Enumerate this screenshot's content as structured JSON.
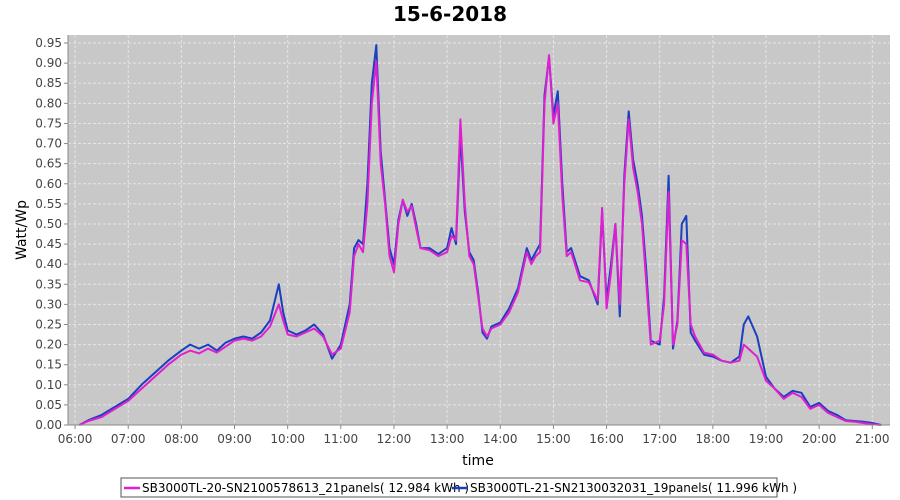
{
  "chart_data": {
    "type": "line",
    "title": "15-6-2018",
    "xlabel": "time",
    "ylabel": "Watt/Wp",
    "xlim": [
      "05:52",
      "21:20"
    ],
    "ylim": [
      0,
      0.97
    ],
    "x_ticks": [
      "06:00",
      "07:00",
      "08:00",
      "09:00",
      "10:00",
      "11:00",
      "12:00",
      "13:00",
      "14:00",
      "15:00",
      "16:00",
      "17:00",
      "18:00",
      "19:00",
      "20:00",
      "21:00"
    ],
    "y_ticks": [
      "0.00",
      "0.05",
      "0.10",
      "0.15",
      "0.20",
      "0.25",
      "0.30",
      "0.35",
      "0.40",
      "0.45",
      "0.50",
      "0.55",
      "0.60",
      "0.65",
      "0.70",
      "0.75",
      "0.80",
      "0.85",
      "0.90",
      "0.95"
    ],
    "grid": true,
    "legend_position": "bottom",
    "colors": {
      "plot_bg": "#c8c8c8",
      "grid": "#e6e6e6"
    },
    "series": [
      {
        "name": "SB3000TL-20-SN2100578613_21panels( 12.984 kWh )",
        "color": "#e020d0",
        "points": [
          [
            "06:05",
            0.0
          ],
          [
            "06:15",
            0.01
          ],
          [
            "06:30",
            0.02
          ],
          [
            "06:45",
            0.04
          ],
          [
            "07:00",
            0.06
          ],
          [
            "07:15",
            0.09
          ],
          [
            "07:30",
            0.12
          ],
          [
            "07:45",
            0.15
          ],
          [
            "08:00",
            0.175
          ],
          [
            "08:10",
            0.185
          ],
          [
            "08:20",
            0.178
          ],
          [
            "08:30",
            0.19
          ],
          [
            "08:40",
            0.18
          ],
          [
            "08:50",
            0.195
          ],
          [
            "09:00",
            0.21
          ],
          [
            "09:10",
            0.215
          ],
          [
            "09:20",
            0.21
          ],
          [
            "09:30",
            0.22
          ],
          [
            "09:40",
            0.245
          ],
          [
            "09:50",
            0.3
          ],
          [
            "09:55",
            0.26
          ],
          [
            "10:00",
            0.225
          ],
          [
            "10:10",
            0.22
          ],
          [
            "10:20",
            0.23
          ],
          [
            "10:30",
            0.24
          ],
          [
            "10:40",
            0.22
          ],
          [
            "10:50",
            0.175
          ],
          [
            "11:00",
            0.19
          ],
          [
            "11:10",
            0.28
          ],
          [
            "11:15",
            0.42
          ],
          [
            "11:20",
            0.45
          ],
          [
            "11:25",
            0.43
          ],
          [
            "11:30",
            0.55
          ],
          [
            "11:35",
            0.8
          ],
          [
            "11:40",
            0.905
          ],
          [
            "11:45",
            0.65
          ],
          [
            "11:50",
            0.55
          ],
          [
            "11:55",
            0.42
          ],
          [
            "12:00",
            0.38
          ],
          [
            "12:05",
            0.5
          ],
          [
            "12:10",
            0.56
          ],
          [
            "12:15",
            0.53
          ],
          [
            "12:20",
            0.545
          ],
          [
            "12:25",
            0.49
          ],
          [
            "12:30",
            0.44
          ],
          [
            "12:40",
            0.435
          ],
          [
            "12:50",
            0.42
          ],
          [
            "13:00",
            0.43
          ],
          [
            "13:05",
            0.47
          ],
          [
            "13:10",
            0.46
          ],
          [
            "13:15",
            0.76
          ],
          [
            "13:20",
            0.55
          ],
          [
            "13:25",
            0.42
          ],
          [
            "13:30",
            0.4
          ],
          [
            "13:35",
            0.32
          ],
          [
            "13:40",
            0.24
          ],
          [
            "13:45",
            0.22
          ],
          [
            "13:50",
            0.24
          ],
          [
            "14:00",
            0.25
          ],
          [
            "14:10",
            0.28
          ],
          [
            "14:20",
            0.33
          ],
          [
            "14:30",
            0.43
          ],
          [
            "14:35",
            0.4
          ],
          [
            "14:40",
            0.42
          ],
          [
            "14:45",
            0.43
          ],
          [
            "14:50",
            0.8
          ],
          [
            "14:55",
            0.92
          ],
          [
            "15:00",
            0.75
          ],
          [
            "15:05",
            0.8
          ],
          [
            "15:10",
            0.57
          ],
          [
            "15:15",
            0.42
          ],
          [
            "15:20",
            0.43
          ],
          [
            "15:30",
            0.36
          ],
          [
            "15:40",
            0.355
          ],
          [
            "15:50",
            0.31
          ],
          [
            "15:55",
            0.54
          ],
          [
            "16:00",
            0.29
          ],
          [
            "16:05",
            0.38
          ],
          [
            "16:10",
            0.5
          ],
          [
            "16:15",
            0.3
          ],
          [
            "16:20",
            0.6
          ],
          [
            "16:25",
            0.76
          ],
          [
            "16:30",
            0.64
          ],
          [
            "16:35",
            0.58
          ],
          [
            "16:40",
            0.5
          ],
          [
            "16:45",
            0.35
          ],
          [
            "16:50",
            0.2
          ],
          [
            "17:00",
            0.21
          ],
          [
            "17:05",
            0.3
          ],
          [
            "17:10",
            0.58
          ],
          [
            "17:15",
            0.2
          ],
          [
            "17:20",
            0.25
          ],
          [
            "17:25",
            0.46
          ],
          [
            "17:30",
            0.45
          ],
          [
            "17:35",
            0.25
          ],
          [
            "17:40",
            0.22
          ],
          [
            "17:50",
            0.18
          ],
          [
            "18:00",
            0.175
          ],
          [
            "18:10",
            0.16
          ],
          [
            "18:20",
            0.155
          ],
          [
            "18:30",
            0.16
          ],
          [
            "18:35",
            0.2
          ],
          [
            "18:40",
            0.19
          ],
          [
            "18:50",
            0.17
          ],
          [
            "19:00",
            0.11
          ],
          [
            "19:10",
            0.09
          ],
          [
            "19:20",
            0.065
          ],
          [
            "19:30",
            0.08
          ],
          [
            "19:40",
            0.07
          ],
          [
            "19:50",
            0.04
          ],
          [
            "20:00",
            0.05
          ],
          [
            "20:10",
            0.03
          ],
          [
            "20:20",
            0.02
          ],
          [
            "20:30",
            0.01
          ],
          [
            "20:40",
            0.008
          ],
          [
            "20:50",
            0.005
          ],
          [
            "21:00",
            0.002
          ],
          [
            "21:10",
            0.0
          ]
        ]
      },
      {
        "name": "SB3000TL-21-SN2130032031_19panels( 11.996 kWh )",
        "color": "#1a3fc0",
        "points": [
          [
            "06:05",
            0.0
          ],
          [
            "06:15",
            0.012
          ],
          [
            "06:30",
            0.025
          ],
          [
            "06:45",
            0.045
          ],
          [
            "07:00",
            0.065
          ],
          [
            "07:15",
            0.1
          ],
          [
            "07:30",
            0.13
          ],
          [
            "07:45",
            0.16
          ],
          [
            "08:00",
            0.185
          ],
          [
            "08:10",
            0.2
          ],
          [
            "08:20",
            0.19
          ],
          [
            "08:30",
            0.2
          ],
          [
            "08:40",
            0.185
          ],
          [
            "08:50",
            0.205
          ],
          [
            "09:00",
            0.215
          ],
          [
            "09:10",
            0.22
          ],
          [
            "09:20",
            0.215
          ],
          [
            "09:30",
            0.23
          ],
          [
            "09:40",
            0.26
          ],
          [
            "09:50",
            0.35
          ],
          [
            "09:55",
            0.28
          ],
          [
            "10:00",
            0.235
          ],
          [
            "10:10",
            0.225
          ],
          [
            "10:20",
            0.235
          ],
          [
            "10:30",
            0.25
          ],
          [
            "10:40",
            0.225
          ],
          [
            "10:50",
            0.165
          ],
          [
            "11:00",
            0.2
          ],
          [
            "11:10",
            0.3
          ],
          [
            "11:15",
            0.44
          ],
          [
            "11:20",
            0.46
          ],
          [
            "11:25",
            0.45
          ],
          [
            "11:30",
            0.6
          ],
          [
            "11:35",
            0.85
          ],
          [
            "11:40",
            0.945
          ],
          [
            "11:45",
            0.68
          ],
          [
            "11:50",
            0.56
          ],
          [
            "11:55",
            0.44
          ],
          [
            "12:00",
            0.4
          ],
          [
            "12:05",
            0.51
          ],
          [
            "12:10",
            0.56
          ],
          [
            "12:15",
            0.52
          ],
          [
            "12:20",
            0.55
          ],
          [
            "12:25",
            0.5
          ],
          [
            "12:30",
            0.44
          ],
          [
            "12:40",
            0.44
          ],
          [
            "12:50",
            0.425
          ],
          [
            "13:00",
            0.44
          ],
          [
            "13:05",
            0.49
          ],
          [
            "13:10",
            0.45
          ],
          [
            "13:15",
            0.72
          ],
          [
            "13:20",
            0.53
          ],
          [
            "13:25",
            0.43
          ],
          [
            "13:30",
            0.41
          ],
          [
            "13:35",
            0.33
          ],
          [
            "13:40",
            0.23
          ],
          [
            "13:45",
            0.215
          ],
          [
            "13:50",
            0.245
          ],
          [
            "14:00",
            0.255
          ],
          [
            "14:10",
            0.29
          ],
          [
            "14:20",
            0.34
          ],
          [
            "14:30",
            0.44
          ],
          [
            "14:35",
            0.41
          ],
          [
            "14:40",
            0.43
          ],
          [
            "14:45",
            0.45
          ],
          [
            "14:50",
            0.82
          ],
          [
            "14:55",
            0.915
          ],
          [
            "15:00",
            0.77
          ],
          [
            "15:05",
            0.83
          ],
          [
            "15:10",
            0.6
          ],
          [
            "15:15",
            0.43
          ],
          [
            "15:20",
            0.44
          ],
          [
            "15:30",
            0.37
          ],
          [
            "15:40",
            0.36
          ],
          [
            "15:50",
            0.3
          ],
          [
            "15:55",
            0.53
          ],
          [
            "16:00",
            0.31
          ],
          [
            "16:05",
            0.4
          ],
          [
            "16:10",
            0.5
          ],
          [
            "16:15",
            0.27
          ],
          [
            "16:20",
            0.62
          ],
          [
            "16:25",
            0.78
          ],
          [
            "16:30",
            0.66
          ],
          [
            "16:35",
            0.6
          ],
          [
            "16:40",
            0.52
          ],
          [
            "16:45",
            0.38
          ],
          [
            "16:50",
            0.21
          ],
          [
            "17:00",
            0.2
          ],
          [
            "17:05",
            0.32
          ],
          [
            "17:10",
            0.62
          ],
          [
            "17:15",
            0.19
          ],
          [
            "17:20",
            0.26
          ],
          [
            "17:25",
            0.5
          ],
          [
            "17:30",
            0.52
          ],
          [
            "17:35",
            0.23
          ],
          [
            "17:40",
            0.21
          ],
          [
            "17:50",
            0.175
          ],
          [
            "18:00",
            0.17
          ],
          [
            "18:10",
            0.16
          ],
          [
            "18:20",
            0.155
          ],
          [
            "18:30",
            0.17
          ],
          [
            "18:35",
            0.25
          ],
          [
            "18:40",
            0.27
          ],
          [
            "18:50",
            0.22
          ],
          [
            "19:00",
            0.12
          ],
          [
            "19:10",
            0.09
          ],
          [
            "19:20",
            0.07
          ],
          [
            "19:30",
            0.085
          ],
          [
            "19:40",
            0.08
          ],
          [
            "19:50",
            0.045
          ],
          [
            "20:00",
            0.055
          ],
          [
            "20:10",
            0.035
          ],
          [
            "20:20",
            0.025
          ],
          [
            "20:30",
            0.012
          ],
          [
            "20:40",
            0.01
          ],
          [
            "20:50",
            0.008
          ],
          [
            "21:00",
            0.005
          ],
          [
            "21:10",
            0.0
          ]
        ]
      }
    ]
  }
}
